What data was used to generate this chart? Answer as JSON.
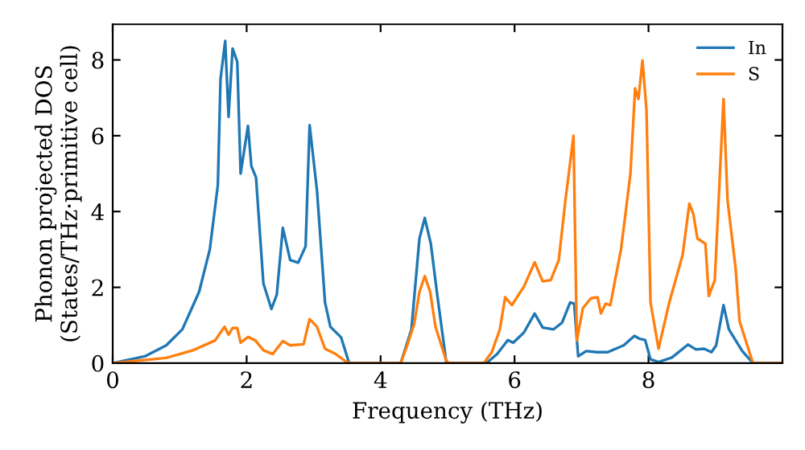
{
  "chart_data": {
    "type": "line",
    "xlabel": "Frequency (THz)",
    "ylabel": "Phonon projected DOS\n(States/THz·primitive cell)",
    "xlim": [
      0,
      10
    ],
    "ylim": [
      0,
      8.94
    ],
    "xticks": [
      0,
      2,
      4,
      6,
      8
    ],
    "yticks": [
      0,
      2,
      4,
      6,
      8
    ],
    "legend": "top right",
    "grid": false,
    "marker": "none",
    "line_style": "solid",
    "series": [
      {
        "name": "In",
        "color": "#1f77b4",
        "x": [
          0,
          0.48,
          0.8,
          1.04,
          1.29,
          1.45,
          1.57,
          1.61,
          1.68,
          1.73,
          1.79,
          1.86,
          1.91,
          2.02,
          2.07,
          2.14,
          2.25,
          2.37,
          2.45,
          2.54,
          2.65,
          2.77,
          2.88,
          2.94,
          3.05,
          3.17,
          3.25,
          3.41,
          3.53,
          4.3,
          4.46,
          4.58,
          4.66,
          4.75,
          4.84,
          4.98,
          5.02,
          5.58,
          5.74,
          5.9,
          5.98,
          6.14,
          6.3,
          6.42,
          6.58,
          6.71,
          6.83,
          6.89,
          6.95,
          7.07,
          7.23,
          7.39,
          7.63,
          7.79,
          7.87,
          7.95,
          8.03,
          8.15,
          8.35,
          8.59,
          8.71,
          8.83,
          8.94,
          9.01,
          9.12,
          9.2,
          9.4,
          9.56,
          9.98
        ],
        "values": [
          0,
          0.18,
          0.47,
          0.89,
          1.88,
          3.0,
          4.7,
          7.5,
          8.5,
          6.5,
          8.3,
          7.95,
          5.0,
          6.26,
          5.2,
          4.9,
          2.1,
          1.43,
          1.81,
          3.57,
          2.72,
          2.65,
          3.08,
          6.28,
          4.56,
          1.6,
          0.96,
          0.68,
          0,
          0,
          0.89,
          3.29,
          3.83,
          3.15,
          1.88,
          0.03,
          0,
          0,
          0.24,
          0.61,
          0.54,
          0.81,
          1.31,
          0.94,
          0.89,
          1.07,
          1.6,
          1.57,
          0.18,
          0.32,
          0.29,
          0.29,
          0.47,
          0.72,
          0.64,
          0.61,
          0.1,
          0.03,
          0.15,
          0.49,
          0.36,
          0.38,
          0.29,
          0.47,
          1.53,
          0.89,
          0.32,
          0,
          0
        ]
      },
      {
        "name": "S",
        "color": "#ff7f0e",
        "x": [
          0,
          0.8,
          1.2,
          1.53,
          1.61,
          1.67,
          1.73,
          1.79,
          1.86,
          1.91,
          2.02,
          2.13,
          2.25,
          2.39,
          2.54,
          2.65,
          2.85,
          2.94,
          3.05,
          3.17,
          3.33,
          3.49,
          3.57,
          4.3,
          4.38,
          4.5,
          4.58,
          4.66,
          4.74,
          4.82,
          4.98,
          5.02,
          5.54,
          5.66,
          5.78,
          5.86,
          5.96,
          6.14,
          6.3,
          6.42,
          6.54,
          6.66,
          6.76,
          6.88,
          6.93,
          7.02,
          7.14,
          7.24,
          7.29,
          7.36,
          7.43,
          7.59,
          7.73,
          7.8,
          7.85,
          7.91,
          7.97,
          8.03,
          8.15,
          8.31,
          8.51,
          8.61,
          8.67,
          8.73,
          8.85,
          8.9,
          8.99,
          9.12,
          9.18,
          9.3,
          9.36,
          9.56,
          9.98
        ],
        "values": [
          0,
          0.14,
          0.34,
          0.6,
          0.81,
          0.96,
          0.75,
          0.93,
          0.93,
          0.54,
          0.69,
          0.6,
          0.34,
          0.24,
          0.58,
          0.47,
          0.5,
          1.16,
          0.96,
          0.38,
          0.24,
          0.03,
          0,
          0,
          0.38,
          1.02,
          1.88,
          2.3,
          1.88,
          0.96,
          0.06,
          0,
          0,
          0.29,
          0.89,
          1.74,
          1.53,
          2.02,
          2.66,
          2.16,
          2.19,
          2.72,
          4.3,
          6.0,
          0.6,
          1.45,
          1.71,
          1.74,
          1.31,
          1.57,
          1.53,
          3.01,
          4.99,
          7.25,
          6.97,
          7.99,
          6.68,
          1.6,
          0.38,
          1.6,
          2.86,
          4.21,
          3.93,
          3.29,
          3.15,
          1.77,
          2.19,
          6.97,
          4.3,
          2.51,
          1.1,
          0,
          0
        ]
      }
    ]
  }
}
